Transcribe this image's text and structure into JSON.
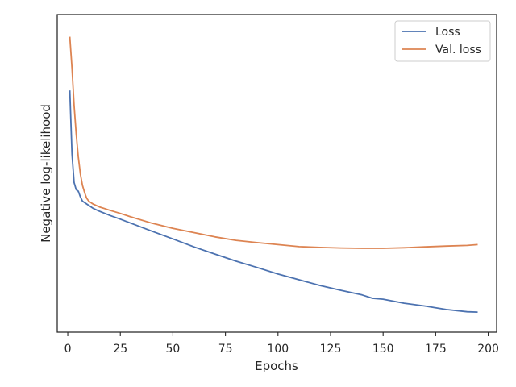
{
  "chart_data": {
    "type": "line",
    "title": "",
    "xlabel": "Epochs",
    "ylabel": "Negative log-likelihood",
    "xlim": [
      -5,
      204
    ],
    "ylim": [
      0,
      100
    ],
    "y_ticks_shown": false,
    "grid": false,
    "legend_position": "top-right",
    "xticks": [
      0,
      25,
      50,
      75,
      100,
      125,
      150,
      175,
      200
    ],
    "series": [
      {
        "name": "Loss",
        "color": "#4c72b0",
        "x": [
          1,
          2,
          3,
          4,
          5,
          6,
          7,
          8,
          10,
          12,
          15,
          20,
          25,
          30,
          40,
          50,
          60,
          70,
          80,
          90,
          100,
          110,
          120,
          130,
          140,
          145,
          150,
          160,
          170,
          180,
          190,
          195
        ],
        "y": [
          77.2,
          55,
          45,
          42.5,
          42,
          40,
          38.5,
          38,
          37,
          36,
          35,
          33.5,
          32.2,
          30.8,
          28,
          25.3,
          22.5,
          20,
          17.5,
          15.3,
          13,
          11,
          9,
          7.3,
          5.7,
          4.5,
          4.2,
          2.8,
          1.8,
          0.6,
          -0.2,
          -0.3
        ]
      },
      {
        "name": "Val. loss",
        "color": "#dd8452",
        "x": [
          1,
          2,
          3,
          4,
          5,
          6,
          7,
          8,
          9,
          10,
          12,
          15,
          20,
          25,
          30,
          40,
          50,
          60,
          70,
          80,
          90,
          100,
          110,
          120,
          130,
          140,
          150,
          160,
          170,
          180,
          190,
          195
        ],
        "y": [
          96,
          85,
          72,
          62,
          54,
          48,
          44,
          41.5,
          39.5,
          38.5,
          37.5,
          36.5,
          35.3,
          34.2,
          33,
          30.8,
          29,
          27.5,
          26,
          24.8,
          24,
          23.3,
          22.6,
          22.3,
          22.1,
          22,
          22,
          22.2,
          22.5,
          22.8,
          23,
          23.3
        ]
      }
    ]
  }
}
